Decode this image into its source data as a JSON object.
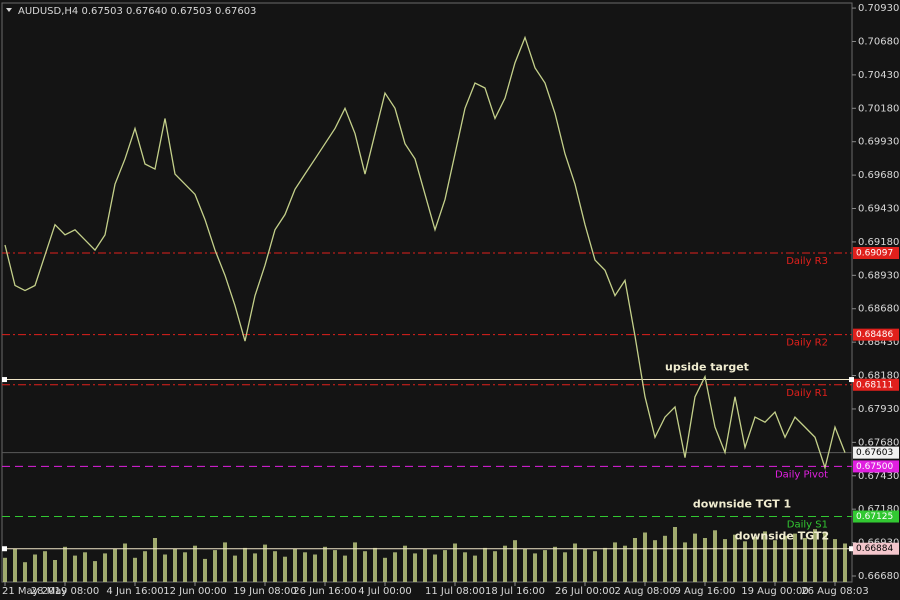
{
  "chart_data": {
    "type": "line",
    "title": "AUDUSD,H4  0.67503 0.67640 0.67503 0.67603",
    "categories": [
      "21 May 2019",
      null,
      null,
      null,
      null,
      null,
      "28 May 08:00",
      null,
      null,
      null,
      null,
      null,
      null,
      "4 Jun 16:00",
      null,
      null,
      null,
      null,
      null,
      "12 Jun 00:00",
      null,
      null,
      null,
      null,
      null,
      null,
      "19 Jun 08:00",
      null,
      null,
      null,
      null,
      null,
      "26 Jun 16:00",
      null,
      null,
      null,
      null,
      null,
      "4 Jul 00:00",
      null,
      null,
      null,
      null,
      null,
      null,
      "11 Jul 08:00",
      null,
      null,
      null,
      null,
      null,
      "18 Jul 16:00",
      null,
      null,
      null,
      null,
      null,
      null,
      "26 Jul 00:00",
      null,
      null,
      null,
      null,
      null,
      "2 Aug 08:00",
      null,
      null,
      null,
      null,
      null,
      "9 Aug 16:00",
      null,
      null,
      null,
      null,
      null,
      null,
      "19 Aug 00:00",
      null,
      null,
      null,
      null,
      null,
      "26 Aug 08:03",
      null
    ],
    "values": [
      0.69157,
      0.68854,
      0.68816,
      0.68854,
      0.69082,
      0.69309,
      0.69233,
      0.69271,
      0.69195,
      0.69119,
      0.69233,
      0.69612,
      0.69801,
      0.70029,
      0.69763,
      0.69725,
      0.70104,
      0.69688,
      0.69612,
      0.69536,
      0.69347,
      0.69119,
      0.6893,
      0.68703,
      0.68438,
      0.68778,
      0.69006,
      0.69271,
      0.69385,
      0.69574,
      0.69688,
      0.69801,
      0.69915,
      0.70029,
      0.7018,
      0.69991,
      0.69688,
      0.69991,
      0.70294,
      0.7018,
      0.69915,
      0.69801,
      0.69536,
      0.69271,
      0.69498,
      0.69839,
      0.7018,
      0.70369,
      0.70332,
      0.70104,
      0.70256,
      0.70521,
      0.7071,
      0.70483,
      0.70369,
      0.70142,
      0.69839,
      0.69612,
      0.69309,
      0.69044,
      0.68968,
      0.68778,
      0.68892,
      0.68475,
      0.68021,
      0.67718,
      0.67869,
      0.67945,
      0.67566,
      0.68021,
      0.68172,
      0.67794,
      0.67604,
      0.68021,
      0.67642,
      0.67869,
      0.67831,
      0.67907,
      0.67718,
      0.67869,
      0.67794,
      0.67718,
      0.6749,
      0.67794,
      0.67603
    ],
    "color": "#c4d08a",
    "volumes": [
      22,
      30,
      18,
      25,
      28,
      20,
      32,
      24,
      27,
      19,
      26,
      30,
      35,
      22,
      28,
      40,
      25,
      30,
      27,
      33,
      21,
      29,
      36,
      24,
      31,
      26,
      34,
      28,
      23,
      30,
      27,
      25,
      32,
      29,
      24,
      36,
      28,
      31,
      22,
      27,
      33,
      26,
      30,
      25,
      29,
      35,
      27,
      24,
      31,
      28,
      33,
      38,
      30,
      26,
      29,
      32,
      27,
      35,
      30,
      28,
      31,
      36,
      33,
      40,
      45,
      38,
      42,
      50,
      36,
      44,
      40,
      47,
      39,
      43,
      37,
      41,
      46,
      38,
      42,
      44,
      40,
      48,
      45,
      39,
      35
    ],
    "volume_color": "#b9c47e",
    "ylim": [
      0.66635,
      0.70953
    ],
    "yticks": [
      {
        "value": 0.7093,
        "label": "0.70930"
      },
      {
        "value": 0.7068,
        "label": "0.70680"
      },
      {
        "value": 0.7043,
        "label": "0.70430"
      },
      {
        "value": 0.7018,
        "label": "0.70180"
      },
      {
        "value": 0.6993,
        "label": "0.69930"
      },
      {
        "value": 0.6968,
        "label": "0.69680"
      },
      {
        "value": 0.6943,
        "label": "0.69430"
      },
      {
        "value": 0.6918,
        "label": "0.69180"
      },
      {
        "value": 0.6893,
        "label": "0.68930"
      },
      {
        "value": 0.6868,
        "label": "0.68680"
      },
      {
        "value": 0.6843,
        "label": "0.68430"
      },
      {
        "value": 0.6818,
        "label": "0.68180"
      },
      {
        "value": 0.6793,
        "label": "0.67930"
      },
      {
        "value": 0.6768,
        "label": "0.67680"
      },
      {
        "value": 0.6743,
        "label": "0.67430"
      },
      {
        "value": 0.6718,
        "label": "0.67180"
      },
      {
        "value": 0.6693,
        "label": "0.66930"
      },
      {
        "value": 0.6668,
        "label": "0.66680"
      }
    ],
    "grid": false,
    "levels": [
      {
        "name": "Daily R3",
        "value": 0.69097,
        "label": "0.69097",
        "color": "#e0201c",
        "style": "dashdot"
      },
      {
        "name": "Daily R2",
        "value": 0.68486,
        "label": "0.68486",
        "color": "#e0201c",
        "style": "dashdot"
      },
      {
        "name": "Daily R1",
        "value": 0.68111,
        "label": "0.68111",
        "color": "#e0201c",
        "style": "dashdot"
      },
      {
        "name": "Daily Pivot",
        "value": 0.675,
        "label": "0.67500",
        "color": "#e020e0",
        "style": "dashed"
      },
      {
        "name": "Daily S1",
        "value": 0.67125,
        "label": "0.67125",
        "color": "#32c832",
        "style": "dashed"
      }
    ],
    "current_price": {
      "value": 0.67603,
      "label": "0.67603"
    },
    "annotations": [
      {
        "text": "upside target",
        "value": 0.6815,
        "line": true
      },
      {
        "text": "downside TGT 1",
        "value": 0.67125,
        "line": false
      },
      {
        "text": "downside TGT2",
        "value": 0.66884,
        "line": true,
        "label": "0.66884"
      }
    ]
  }
}
